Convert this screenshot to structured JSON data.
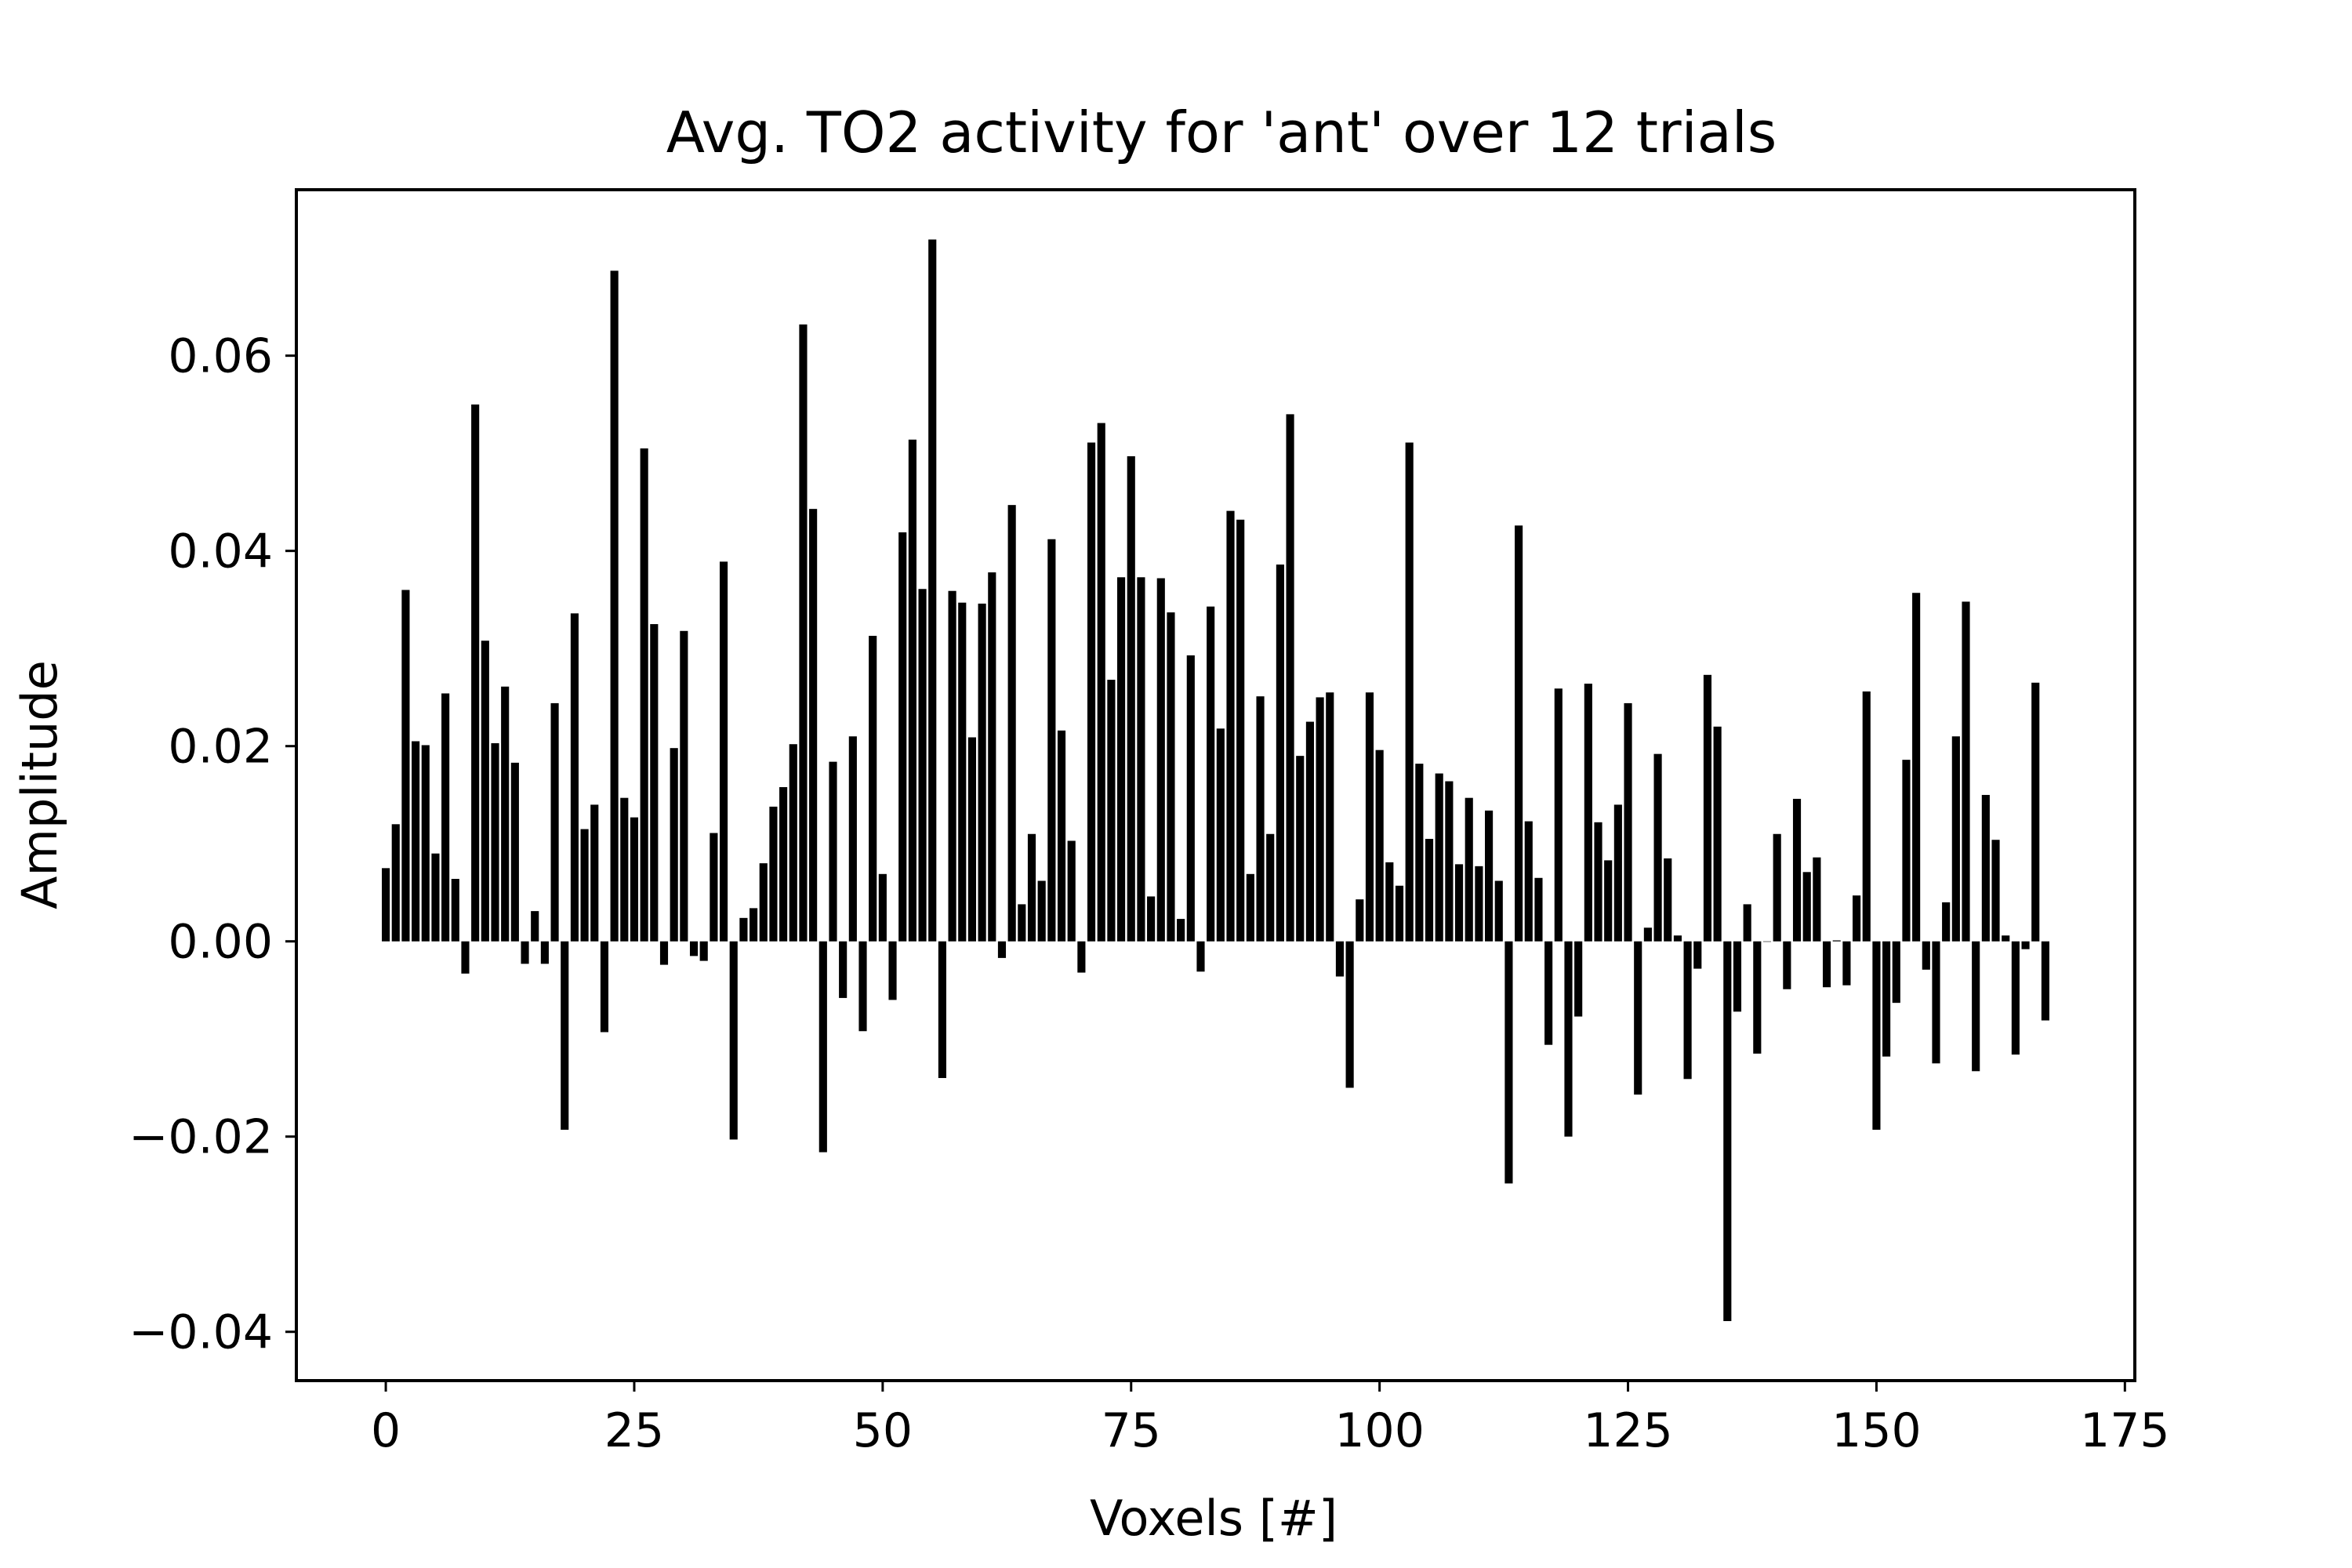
{
  "chart_data": {
    "type": "bar",
    "title": "Avg. TO2 activity for 'ant' over 12 trials",
    "xlabel": "Voxels [#]",
    "ylabel": "Amplitude",
    "xlim": [
      -9,
      176
    ],
    "ylim": [
      -0.045,
      0.077
    ],
    "xticks": [
      0,
      25,
      50,
      75,
      100,
      125,
      150,
      175
    ],
    "xtick_labels": [
      "0",
      "25",
      "50",
      "75",
      "100",
      "125",
      "150",
      "175"
    ],
    "yticks": [
      -0.04,
      -0.02,
      0.0,
      0.02,
      0.04,
      0.06
    ],
    "ytick_labels": [
      "−0.04",
      "−0.02",
      "0.00",
      "0.02",
      "0.04",
      "0.06"
    ],
    "grid": false,
    "bar_color": "#000000",
    "bar_width": 0.8,
    "x": [
      0,
      1,
      2,
      3,
      4,
      5,
      6,
      7,
      8,
      9,
      10,
      11,
      12,
      13,
      14,
      15,
      16,
      17,
      18,
      19,
      20,
      21,
      22,
      23,
      24,
      25,
      26,
      27,
      28,
      29,
      30,
      31,
      32,
      33,
      34,
      35,
      36,
      37,
      38,
      39,
      40,
      41,
      42,
      43,
      44,
      45,
      46,
      47,
      48,
      49,
      50,
      51,
      52,
      53,
      54,
      55,
      56,
      57,
      58,
      59,
      60,
      61,
      62,
      63,
      64,
      65,
      66,
      67,
      68,
      69,
      70,
      71,
      72,
      73,
      74,
      75,
      76,
      77,
      78,
      79,
      80,
      81,
      82,
      83,
      84,
      85,
      86,
      87,
      88,
      89,
      90,
      91,
      92,
      93,
      94,
      95,
      96,
      97,
      98,
      99,
      100,
      101,
      102,
      103,
      104,
      105,
      106,
      107,
      108,
      109,
      110,
      111,
      112,
      113,
      114,
      115,
      116,
      117,
      118,
      119,
      120,
      121,
      122,
      123,
      124,
      125,
      126,
      127,
      128,
      129,
      130,
      131,
      132,
      133,
      134,
      135,
      136,
      137,
      138,
      139,
      140,
      141,
      142,
      143,
      144,
      145,
      146,
      147,
      148,
      149,
      150,
      151,
      152,
      153,
      154,
      155,
      156,
      157,
      158,
      159,
      160,
      161,
      162,
      163,
      164,
      165,
      166,
      167
    ],
    "values": [
      0.0075,
      0.012,
      0.036,
      0.0205,
      0.0201,
      0.009,
      0.0254,
      0.0064,
      -0.0033,
      0.055,
      0.0308,
      0.0203,
      0.0261,
      0.0183,
      -0.0023,
      0.0031,
      -0.0023,
      0.0244,
      -0.0193,
      0.0336,
      0.0115,
      0.014,
      -0.0093,
      0.0687,
      0.0147,
      0.0127,
      0.0505,
      0.0325,
      -0.0024,
      0.0198,
      0.0318,
      -0.0015,
      -0.002,
      0.0111,
      0.0389,
      -0.0203,
      0.0024,
      0.0034,
      0.008,
      0.0138,
      0.0158,
      0.0202,
      0.0632,
      0.0443,
      -0.0216,
      0.0184,
      -0.0058,
      0.021,
      -0.0092,
      0.0313,
      0.0069,
      -0.006,
      0.0419,
      0.0514,
      0.0361,
      0.0719,
      -0.014,
      0.0359,
      0.0347,
      0.0209,
      0.0346,
      0.0378,
      -0.0017,
      0.0447,
      0.0038,
      0.011,
      0.0062,
      0.0412,
      0.0216,
      0.0103,
      -0.0032,
      0.0511,
      0.0531,
      0.0268,
      0.0373,
      0.0497,
      0.0373,
      0.0046,
      0.0372,
      0.0337,
      0.0023,
      0.0293,
      -0.0031,
      0.0343,
      0.0218,
      0.0441,
      0.0432,
      0.0069,
      0.0251,
      0.011,
      0.0386,
      0.054,
      0.019,
      0.0225,
      0.025,
      0.0255,
      -0.0036,
      -0.015,
      0.0043,
      0.0255,
      0.0196,
      0.0081,
      0.0057,
      0.0511,
      0.0182,
      0.0105,
      0.0172,
      0.0164,
      0.0079,
      0.0147,
      0.0077,
      0.0134,
      0.0062,
      -0.0248,
      0.0426,
      0.0123,
      0.0065,
      -0.0106,
      0.0259,
      -0.02,
      -0.0077,
      0.0264,
      0.0122,
      0.0083,
      0.014,
      0.0244,
      -0.0157,
      0.0014,
      0.0192,
      0.0085,
      0.0006,
      -0.0141,
      -0.0028,
      0.0273,
      0.022,
      -0.0389,
      -0.0072,
      0.0038,
      -0.0115,
      0.0,
      0.011,
      -0.0049,
      0.0146,
      0.0071,
      0.0086,
      -0.0047,
      0.0001,
      -0.0045,
      0.0047,
      0.0256,
      -0.0193,
      -0.0118,
      -0.0063,
      0.0186,
      0.0357,
      -0.0029,
      -0.0125,
      0.004,
      0.021,
      0.0348,
      -0.0133,
      0.015,
      0.0104,
      0.0006,
      -0.0116,
      -0.0008,
      0.0265,
      -0.0081
    ]
  }
}
